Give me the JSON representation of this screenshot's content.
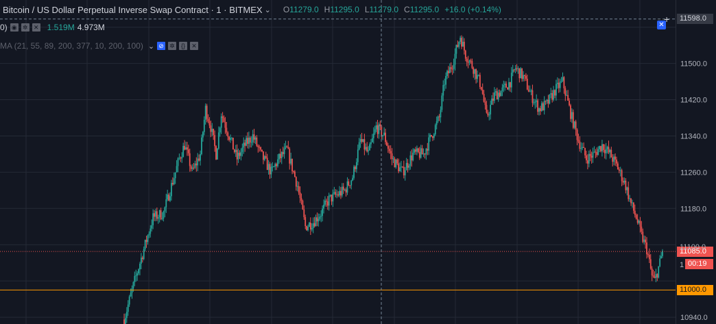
{
  "header": {
    "title": "Bitcoin / US Dollar Perpetual Inverse Swap Contract · 1 · BITMEX",
    "ohlc": [
      {
        "label": "O",
        "value": "11279.0"
      },
      {
        "label": "H",
        "value": "11295.0"
      },
      {
        "label": "L",
        "value": "11279.0"
      },
      {
        "label": "C",
        "value": "11295.0"
      }
    ],
    "change": "+16.0 (+0.14%)"
  },
  "volume_row": {
    "prefix": "0)",
    "value1": "1.519M",
    "value2": "4.973M"
  },
  "ma_row": {
    "label": "MA (21, 55, 89, 200, 377, 10, 200, 100)"
  },
  "price_axis": {
    "crosshair_price": "11598.0",
    "last_price": "11085.0",
    "countdown": "00:19",
    "alert_price": "11000.0",
    "partial_tick_1": "11100.0",
    "partial_tick_2": "1"
  },
  "colors": {
    "background": "#131722",
    "up": "#26a69a",
    "down": "#ef5350",
    "alert_line": "#ff9800",
    "grid": "#2a2e39",
    "text": "#b2b5be"
  },
  "chart_data": {
    "type": "candlestick",
    "yticks": [
      11500.0,
      11420.0,
      11340.0,
      11260.0,
      11180.0,
      10940.0
    ],
    "ylim": [
      10925,
      11640
    ],
    "horizontal_lines": [
      {
        "price": 11085.0,
        "style": "dotted",
        "color": "#ef5350"
      },
      {
        "price": 11000.0,
        "style": "solid",
        "color": "#ff9800"
      }
    ],
    "crosshair_price": 11598.0,
    "waypoints": [
      [
        0,
        10935
      ],
      [
        8,
        11020
      ],
      [
        14,
        11080
      ],
      [
        22,
        11160
      ],
      [
        30,
        11170
      ],
      [
        42,
        11290
      ],
      [
        46,
        11320
      ],
      [
        52,
        11260
      ],
      [
        58,
        11300
      ],
      [
        62,
        11400
      ],
      [
        66,
        11360
      ],
      [
        70,
        11300
      ],
      [
        74,
        11390
      ],
      [
        80,
        11340
      ],
      [
        86,
        11290
      ],
      [
        92,
        11320
      ],
      [
        98,
        11340
      ],
      [
        104,
        11300
      ],
      [
        112,
        11260
      ],
      [
        118,
        11290
      ],
      [
        124,
        11310
      ],
      [
        132,
        11230
      ],
      [
        138,
        11140
      ],
      [
        144,
        11150
      ],
      [
        150,
        11170
      ],
      [
        156,
        11200
      ],
      [
        162,
        11210
      ],
      [
        168,
        11220
      ],
      [
        174,
        11250
      ],
      [
        180,
        11330
      ],
      [
        186,
        11300
      ],
      [
        192,
        11360
      ],
      [
        198,
        11340
      ],
      [
        204,
        11290
      ],
      [
        212,
        11260
      ],
      [
        220,
        11300
      ],
      [
        228,
        11300
      ],
      [
        234,
        11340
      ],
      [
        240,
        11380
      ],
      [
        244,
        11460
      ],
      [
        250,
        11500
      ],
      [
        256,
        11560
      ],
      [
        260,
        11520
      ],
      [
        266,
        11490
      ],
      [
        272,
        11450
      ],
      [
        276,
        11380
      ],
      [
        282,
        11430
      ],
      [
        288,
        11440
      ],
      [
        294,
        11460
      ],
      [
        298,
        11490
      ],
      [
        304,
        11470
      ],
      [
        310,
        11430
      ],
      [
        316,
        11400
      ],
      [
        322,
        11410
      ],
      [
        328,
        11440
      ],
      [
        334,
        11460
      ],
      [
        340,
        11390
      ],
      [
        346,
        11330
      ],
      [
        352,
        11290
      ],
      [
        358,
        11300
      ],
      [
        364,
        11320
      ],
      [
        370,
        11300
      ],
      [
        376,
        11270
      ],
      [
        382,
        11230
      ],
      [
        386,
        11190
      ],
      [
        390,
        11160
      ],
      [
        394,
        11120
      ],
      [
        398,
        11090
      ],
      [
        402,
        11030
      ],
      [
        404,
        11020
      ],
      [
        408,
        11060
      ],
      [
        410,
        11085
      ]
    ]
  }
}
